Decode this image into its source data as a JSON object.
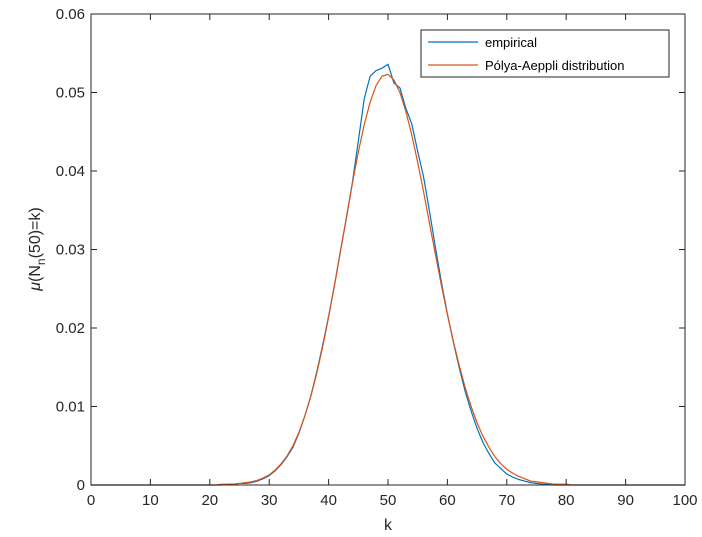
{
  "chart_data": {
    "type": "line",
    "title": "",
    "xlabel": "k",
    "ylabel": {
      "prefix": "μ",
      "main": "(N",
      "subscript": "n",
      "suffix": "(50)=k)"
    },
    "xlim": [
      0,
      100
    ],
    "ylim": [
      0,
      0.06
    ],
    "xticks": [
      0,
      10,
      20,
      30,
      40,
      50,
      60,
      70,
      80,
      90,
      100
    ],
    "xtick_labels": [
      "0",
      "10",
      "20",
      "30",
      "40",
      "50",
      "60",
      "70",
      "80",
      "90",
      "100"
    ],
    "yticks": [
      0,
      0.01,
      0.02,
      0.03,
      0.04,
      0.05,
      0.06
    ],
    "ytick_labels": [
      "0",
      "0.01",
      "0.02",
      "0.03",
      "0.04",
      "0.05",
      "0.06"
    ],
    "grid": false,
    "legend_position": "top-right",
    "series": [
      {
        "name": "empirical",
        "color": "#0072BD",
        "x": [
          0,
          1,
          2,
          3,
          4,
          5,
          6,
          7,
          8,
          9,
          10,
          11,
          12,
          13,
          14,
          15,
          16,
          17,
          18,
          19,
          20,
          21,
          22,
          23,
          24,
          25,
          26,
          27,
          28,
          29,
          30,
          31,
          32,
          33,
          34,
          35,
          36,
          37,
          38,
          39,
          40,
          41,
          42,
          43,
          44,
          45,
          46,
          47,
          48,
          49,
          50,
          51,
          52,
          53,
          54,
          55,
          56,
          57,
          58,
          59,
          60,
          61,
          62,
          63,
          64,
          65,
          66,
          67,
          68,
          69,
          70,
          71,
          72,
          73,
          74,
          75,
          76,
          77,
          78,
          79,
          80,
          81,
          82,
          83,
          84,
          85,
          86,
          87,
          88,
          89,
          90,
          91,
          92,
          93,
          94,
          95,
          96,
          97,
          98,
          99,
          100
        ],
        "y": [
          0,
          0,
          0,
          0,
          0,
          0,
          0,
          0,
          0,
          0,
          0,
          0,
          0,
          0,
          0,
          0,
          0,
          0,
          0,
          0,
          0,
          0,
          0,
          0.0001,
          0.0001,
          0.0002,
          0.0002,
          0.0003,
          0.0005,
          0.0008,
          0.0012,
          0.0018,
          0.0026,
          0.0036,
          0.0048,
          0.0066,
          0.0088,
          0.0113,
          0.0144,
          0.0178,
          0.0215,
          0.0255,
          0.0298,
          0.034,
          0.0385,
          0.0438,
          0.0492,
          0.0521,
          0.0528,
          0.0531,
          0.0536,
          0.0512,
          0.0506,
          0.048,
          0.046,
          0.0425,
          0.0392,
          0.0348,
          0.0302,
          0.0258,
          0.0218,
          0.0182,
          0.0149,
          0.0119,
          0.0094,
          0.0072,
          0.0054,
          0.004,
          0.0028,
          0.0021,
          0.0014,
          0.001,
          0.0007,
          0.0005,
          0.0003,
          0.0002,
          0.0001,
          0.0001,
          0,
          0,
          0,
          0,
          0,
          0,
          0,
          0,
          0,
          0,
          0,
          0,
          0,
          0,
          0,
          0,
          0,
          0,
          0,
          0,
          0,
          0,
          0
        ]
      },
      {
        "name": "Pólya-Aeppli distribution",
        "color": "#D95319",
        "x": [
          0,
          1,
          2,
          3,
          4,
          5,
          6,
          7,
          8,
          9,
          10,
          11,
          12,
          13,
          14,
          15,
          16,
          17,
          18,
          19,
          20,
          21,
          22,
          23,
          24,
          25,
          26,
          27,
          28,
          29,
          30,
          31,
          32,
          33,
          34,
          35,
          36,
          37,
          38,
          39,
          40,
          41,
          42,
          43,
          44,
          45,
          46,
          47,
          48,
          49,
          50,
          51,
          52,
          53,
          54,
          55,
          56,
          57,
          58,
          59,
          60,
          61,
          62,
          63,
          64,
          65,
          66,
          67,
          68,
          69,
          70,
          71,
          72,
          73,
          74,
          75,
          76,
          77,
          78,
          79,
          80,
          81,
          82,
          83,
          84,
          85,
          86,
          87,
          88,
          89,
          90,
          91,
          92,
          93,
          94,
          95,
          96,
          97,
          98,
          99,
          100
        ],
        "y": [
          0,
          0,
          0,
          0,
          0,
          0,
          0,
          0,
          0,
          0,
          0,
          0,
          0,
          0,
          0,
          0,
          0,
          0,
          0,
          0,
          0,
          0,
          0.0001,
          0.0001,
          0.0001,
          0.0002,
          0.0003,
          0.0004,
          0.0006,
          0.0009,
          0.0013,
          0.0019,
          0.0027,
          0.0037,
          0.005,
          0.0067,
          0.0088,
          0.0113,
          0.0142,
          0.0176,
          0.0214,
          0.0255,
          0.0298,
          0.0341,
          0.0384,
          0.0424,
          0.0459,
          0.0488,
          0.0509,
          0.0521,
          0.0523,
          0.0516,
          0.05,
          0.0476,
          0.0446,
          0.0411,
          0.0373,
          0.0333,
          0.0293,
          0.0254,
          0.0217,
          0.0183,
          0.0152,
          0.0124,
          0.01,
          0.0079,
          0.0062,
          0.0048,
          0.0036,
          0.0027,
          0.002,
          0.0015,
          0.0011,
          0.0008,
          0.0005,
          0.0004,
          0.0003,
          0.0002,
          0.0001,
          0.0001,
          0.0001,
          0,
          0,
          0,
          0,
          0,
          0,
          0,
          0,
          0,
          0,
          0,
          0,
          0,
          0,
          0,
          0,
          0,
          0,
          0,
          0
        ]
      }
    ]
  }
}
